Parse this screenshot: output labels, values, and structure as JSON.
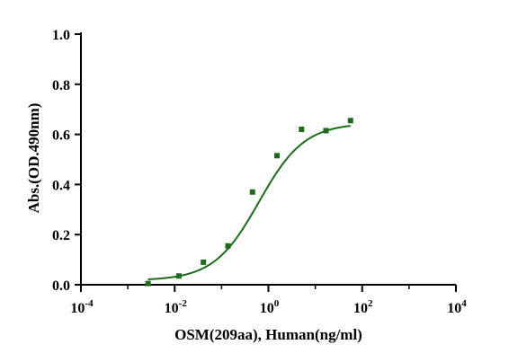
{
  "chart_data": {
    "type": "scatter",
    "xlabel": "OSM(209aa), Human(ng/ml)",
    "ylabel": "Abs.(OD.490nm)",
    "x_scale": "log",
    "xlim": [
      0.0001,
      10000
    ],
    "ylim": [
      0,
      1.0
    ],
    "x_ticks": [
      {
        "value": 0.0001,
        "base": "10",
        "exp": "-4"
      },
      {
        "value": 0.01,
        "base": "10",
        "exp": "-2"
      },
      {
        "value": 1,
        "base": "10",
        "exp": "0"
      },
      {
        "value": 100,
        "base": "10",
        "exp": "2"
      },
      {
        "value": 10000,
        "base": "10",
        "exp": "4"
      }
    ],
    "y_ticks": [
      {
        "value": 0.0,
        "label": "0.0"
      },
      {
        "value": 0.2,
        "label": "0.2"
      },
      {
        "value": 0.4,
        "label": "0.4"
      },
      {
        "value": 0.6,
        "label": "0.6"
      },
      {
        "value": 0.8,
        "label": "0.8"
      },
      {
        "value": 1.0,
        "label": "1.0"
      }
    ],
    "grid": false,
    "legend": "none",
    "color": "#1e6b1e",
    "points": [
      {
        "x": 0.0027,
        "y": 0.005
      },
      {
        "x": 0.0123,
        "y": 0.035
      },
      {
        "x": 0.041,
        "y": 0.09
      },
      {
        "x": 0.137,
        "y": 0.155
      },
      {
        "x": 0.457,
        "y": 0.37
      },
      {
        "x": 1.52,
        "y": 0.515
      },
      {
        "x": 5.08,
        "y": 0.62
      },
      {
        "x": 16.9,
        "y": 0.615
      },
      {
        "x": 56.4,
        "y": 0.655
      }
    ],
    "fit": {
      "model": "4PL",
      "bottom": 0.017,
      "top": 0.645,
      "ec50": 0.63,
      "hill": 0.9,
      "x_from": 0.0027,
      "x_to": 56.4
    }
  }
}
